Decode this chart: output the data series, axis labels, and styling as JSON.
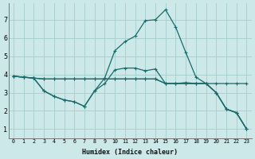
{
  "xlabel": "Humidex (Indice chaleur)",
  "bg_color": "#cce8e8",
  "grid_color": "#aad0d0",
  "line_color": "#1a6b6b",
  "xlim": [
    -0.5,
    23.5
  ],
  "ylim": [
    0.5,
    7.9
  ],
  "xticks": [
    0,
    1,
    2,
    3,
    4,
    5,
    6,
    7,
    8,
    9,
    10,
    11,
    12,
    13,
    14,
    15,
    16,
    17,
    18,
    19,
    20,
    21,
    22,
    23
  ],
  "yticks": [
    1,
    2,
    3,
    4,
    5,
    6,
    7
  ],
  "line1_x": [
    0,
    1,
    2,
    3,
    4,
    5,
    6,
    7,
    8,
    9,
    10,
    11,
    12,
    13,
    14,
    15,
    16,
    17,
    18,
    19,
    20,
    21,
    22,
    23
  ],
  "line1_y": [
    3.9,
    3.85,
    3.8,
    3.75,
    3.75,
    3.75,
    3.75,
    3.75,
    3.75,
    3.75,
    3.75,
    3.75,
    3.75,
    3.75,
    3.75,
    3.5,
    3.5,
    3.5,
    3.5,
    3.5,
    3.5,
    3.5,
    3.5,
    3.5
  ],
  "line2_x": [
    0,
    1,
    2,
    3,
    4,
    5,
    6,
    7,
    8,
    9,
    10,
    11,
    12,
    13,
    14,
    15,
    16,
    17,
    18,
    19,
    20,
    21,
    22,
    23
  ],
  "line2_y": [
    3.9,
    3.85,
    3.8,
    3.1,
    2.8,
    2.6,
    2.5,
    2.25,
    3.1,
    3.5,
    4.25,
    4.35,
    4.35,
    4.2,
    4.3,
    3.5,
    3.5,
    3.55,
    3.5,
    3.5,
    3.0,
    2.1,
    1.9,
    1.0
  ],
  "line3_x": [
    0,
    1,
    2,
    3,
    4,
    5,
    6,
    7,
    8,
    9,
    10,
    11,
    12,
    13,
    14,
    15,
    16,
    17,
    18,
    19,
    20,
    21,
    22,
    23
  ],
  "line3_y": [
    3.9,
    3.85,
    3.8,
    3.1,
    2.8,
    2.6,
    2.5,
    2.25,
    3.1,
    3.8,
    5.3,
    5.8,
    6.1,
    6.95,
    7.0,
    7.55,
    6.6,
    5.2,
    3.85,
    3.5,
    3.0,
    2.1,
    1.9,
    1.0
  ],
  "line4_x": [
    0,
    1,
    2,
    3,
    4,
    5,
    6,
    7,
    8,
    9,
    10,
    11,
    12,
    13,
    14,
    15,
    16,
    17,
    18,
    19,
    20,
    21,
    22,
    23
  ],
  "line4_y": [
    3.9,
    3.85,
    3.8,
    3.75,
    3.75,
    3.75,
    3.75,
    3.75,
    3.75,
    3.75,
    3.75,
    3.75,
    3.75,
    3.75,
    3.75,
    3.5,
    3.5,
    3.5,
    3.5,
    3.5,
    3.0,
    2.1,
    1.9,
    1.0
  ]
}
